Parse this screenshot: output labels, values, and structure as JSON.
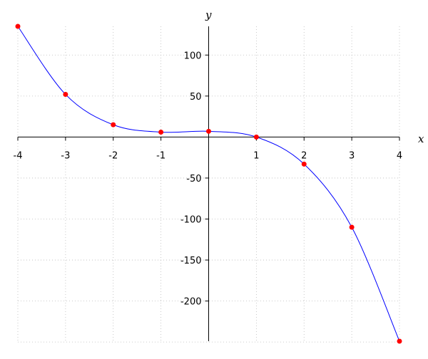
{
  "chart_data": {
    "type": "line",
    "title": "",
    "xlabel": "x",
    "ylabel": "y",
    "xlim": [
      -4,
      4
    ],
    "ylim": [
      -249,
      135
    ],
    "x_ticks": [
      -4,
      -3,
      -2,
      -1,
      1,
      2,
      3,
      4
    ],
    "y_ticks": [
      100,
      50,
      -50,
      -100,
      -150,
      -200
    ],
    "grid": true,
    "grid_style": "dotted",
    "x": [
      -4,
      -3,
      -2,
      -1,
      0,
      1,
      2,
      3,
      4
    ],
    "series": [
      {
        "values": [
          135,
          52,
          15,
          6,
          7,
          0,
          -33,
          -110,
          -249
        ],
        "color": "#0000ff",
        "marker_color": "#ff0000",
        "style": "smooth curve with markers"
      }
    ]
  }
}
